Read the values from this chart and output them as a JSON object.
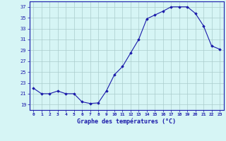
{
  "hours": [
    0,
    1,
    2,
    3,
    4,
    5,
    6,
    7,
    8,
    9,
    10,
    11,
    12,
    13,
    14,
    15,
    16,
    17,
    18,
    19,
    20,
    21,
    22,
    23
  ],
  "temperatures": [
    22.0,
    21.0,
    21.0,
    21.5,
    21.0,
    21.0,
    19.5,
    19.2,
    19.3,
    21.5,
    24.5,
    26.0,
    28.5,
    31.0,
    34.8,
    35.5,
    36.2,
    37.0,
    37.0,
    37.0,
    35.8,
    33.5,
    29.8,
    29.2
  ],
  "line_color": "#1a1aaa",
  "marker": "D",
  "marker_size": 1.8,
  "bg_color": "#d6f5f5",
  "grid_color": "#aacccc",
  "xlabel": "Graphe des températures (°C)",
  "xlabel_color": "#1a1aaa",
  "tick_color": "#1a1aaa",
  "ylim": [
    18.0,
    38.0
  ],
  "yticks": [
    19,
    21,
    23,
    25,
    27,
    29,
    31,
    33,
    35,
    37
  ],
  "xlim": [
    -0.5,
    23.5
  ],
  "xticks": [
    0,
    1,
    2,
    3,
    4,
    5,
    6,
    7,
    8,
    9,
    10,
    11,
    12,
    13,
    14,
    15,
    16,
    17,
    18,
    19,
    20,
    21,
    22,
    23
  ]
}
